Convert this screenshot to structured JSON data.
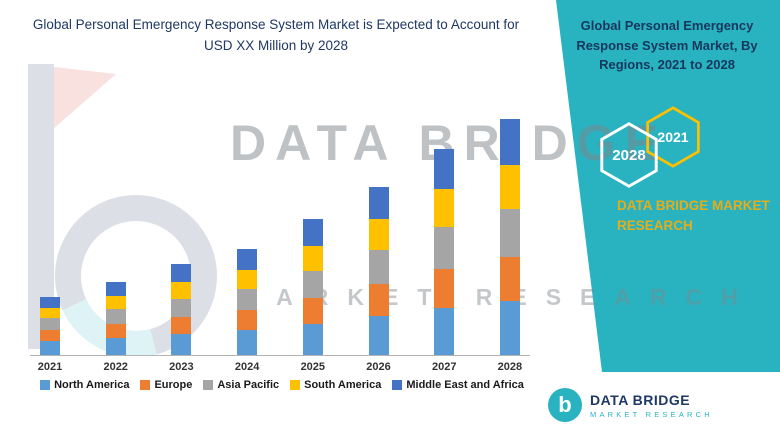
{
  "header": {
    "title": "Global Personal Emergency Response System Market is Expected to Account for USD XX Million by 2028"
  },
  "side_panel": {
    "title": "Global Personal Emergency Response System Market, By Regions, 2021 to 2028",
    "badge_2021": "2021",
    "badge_2028": "2028",
    "brand": "DATA BRIDGE MARKET RESEARCH",
    "colors": {
      "teal": "#29b3c0",
      "yellow": "#e6ad17",
      "navy": "#17375d",
      "badge_outline_2021": "#ffc000",
      "badge_outline_2028": "#ffffff"
    }
  },
  "watermark": {
    "primary": "DATA BRIDGE",
    "secondary": "MARKET RESEARCH"
  },
  "footer": {
    "logo_glyph": "b",
    "name": "DATA BRIDGE",
    "tagline": "MARKET RESEARCH"
  },
  "chart_data": {
    "type": "bar",
    "stacked": true,
    "title": "Global Personal Emergency Response System Market is Expected to Account for USD XX Million by 2028",
    "categories": [
      "2021",
      "2022",
      "2023",
      "2024",
      "2025",
      "2026",
      "2027",
      "2028"
    ],
    "series": [
      {
        "name": "North America",
        "color": "#5b9bd5",
        "values": [
          14,
          17,
          21,
          25,
          31,
          39,
          47,
          54
        ]
      },
      {
        "name": "Europe",
        "color": "#ed7d31",
        "values": [
          11,
          14,
          17,
          20,
          26,
          32,
          39,
          44
        ]
      },
      {
        "name": "Asia Pacific",
        "color": "#a5a5a5",
        "values": [
          12,
          15,
          18,
          21,
          27,
          34,
          42,
          48
        ]
      },
      {
        "name": "South America",
        "color": "#ffc000",
        "values": [
          10,
          13,
          17,
          19,
          25,
          31,
          38,
          44
        ]
      },
      {
        "name": "Middle East and Africa",
        "color": "#4472c4",
        "values": [
          11,
          14,
          18,
          21,
          27,
          32,
          40,
          46
        ]
      }
    ],
    "xlabel": "",
    "ylabel": "",
    "y_axis_labels_visible": false,
    "unit_note": "Axis unlabeled in source (USD XX Million); values are relative estimates from bar heights",
    "legend_position": "bottom",
    "grid": false
  }
}
